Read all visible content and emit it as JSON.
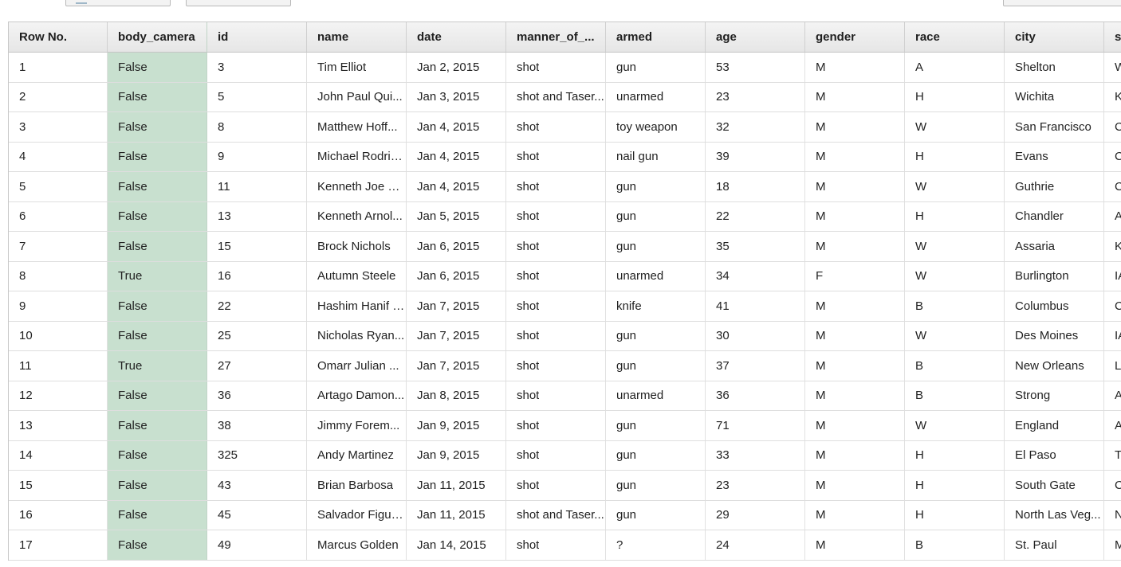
{
  "columns": [
    "Row No.",
    "body_camera",
    "id",
    "name",
    "date",
    "manner_of_...",
    "armed",
    "age",
    "gender",
    "race",
    "city",
    "s"
  ],
  "rows": [
    [
      "1",
      "False",
      "3",
      "Tim Elliot",
      "Jan 2, 2015",
      "shot",
      "gun",
      "53",
      "M",
      "A",
      "Shelton",
      "W"
    ],
    [
      "2",
      "False",
      "5",
      "John Paul Qui...",
      "Jan 3, 2015",
      "shot and Taser...",
      "unarmed",
      "23",
      "M",
      "H",
      "Wichita",
      "K"
    ],
    [
      "3",
      "False",
      "8",
      "Matthew Hoff...",
      "Jan 4, 2015",
      "shot",
      "toy weapon",
      "32",
      "M",
      "W",
      "San Francisco",
      "C"
    ],
    [
      "4",
      "False",
      "9",
      "Michael Rodrig...",
      "Jan 4, 2015",
      "shot",
      "nail gun",
      "39",
      "M",
      "H",
      "Evans",
      "C"
    ],
    [
      "5",
      "False",
      "11",
      "Kenneth Joe B...",
      "Jan 4, 2015",
      "shot",
      "gun",
      "18",
      "M",
      "W",
      "Guthrie",
      "C"
    ],
    [
      "6",
      "False",
      "13",
      "Kenneth Arnol...",
      "Jan 5, 2015",
      "shot",
      "gun",
      "22",
      "M",
      "H",
      "Chandler",
      "A"
    ],
    [
      "7",
      "False",
      "15",
      "Brock Nichols",
      "Jan 6, 2015",
      "shot",
      "gun",
      "35",
      "M",
      "W",
      "Assaria",
      "K"
    ],
    [
      "8",
      "True",
      "16",
      "Autumn Steele",
      "Jan 6, 2015",
      "shot",
      "unarmed",
      "34",
      "F",
      "W",
      "Burlington",
      "IA"
    ],
    [
      "9",
      "False",
      "22",
      "Hashim Hanif I...",
      "Jan 7, 2015",
      "shot",
      "knife",
      "41",
      "M",
      "B",
      "Columbus",
      "C"
    ],
    [
      "10",
      "False",
      "25",
      "Nicholas Ryan...",
      "Jan 7, 2015",
      "shot",
      "gun",
      "30",
      "M",
      "W",
      "Des Moines",
      "IA"
    ],
    [
      "11",
      "True",
      "27",
      "Omarr Julian ...",
      "Jan 7, 2015",
      "shot",
      "gun",
      "37",
      "M",
      "B",
      "New Orleans",
      "L"
    ],
    [
      "12",
      "False",
      "36",
      "Artago Damon...",
      "Jan 8, 2015",
      "shot",
      "unarmed",
      "36",
      "M",
      "B",
      "Strong",
      "A"
    ],
    [
      "13",
      "False",
      "38",
      "Jimmy Forem...",
      "Jan 9, 2015",
      "shot",
      "gun",
      "71",
      "M",
      "W",
      "England",
      "A"
    ],
    [
      "14",
      "False",
      "325",
      "Andy Martinez",
      "Jan 9, 2015",
      "shot",
      "gun",
      "33",
      "M",
      "H",
      "El Paso",
      "T"
    ],
    [
      "15",
      "False",
      "43",
      "Brian  Barbosa",
      "Jan 11, 2015",
      "shot",
      "gun",
      "23",
      "M",
      "H",
      "South Gate",
      "C"
    ],
    [
      "16",
      "False",
      "45",
      "Salvador Figue...",
      "Jan 11, 2015",
      "shot and Taser...",
      "gun",
      "29",
      "M",
      "H",
      "North Las Veg...",
      "N"
    ],
    [
      "17",
      "False",
      "49",
      "Marcus Golden",
      "Jan 14, 2015",
      "shot",
      "?",
      "24",
      "M",
      "B",
      "St. Paul",
      "M"
    ]
  ],
  "highlight_color": "#c8e0cf"
}
